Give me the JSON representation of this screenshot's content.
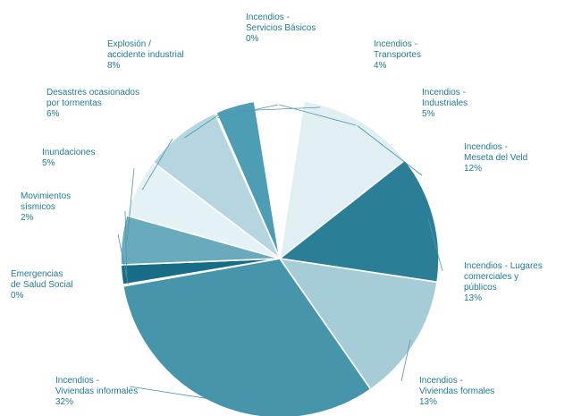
{
  "chart_data": {
    "type": "pie",
    "title": "",
    "start_category": "Incendios - Servicios Básicos",
    "direction": "clockwise",
    "slices": [
      {
        "category": "Incendios - Servicios Básicos",
        "label_lines": [
          "Incendios -",
          "Servicios Básicos",
          "0%"
        ],
        "value": 0,
        "color": "#2e8aa3"
      },
      {
        "category": "Incendios - Transportes",
        "label_lines": [
          "Incendios -",
          "Transportes",
          "4%"
        ],
        "value": 4,
        "color": "#4d9db4"
      },
      {
        "category": "Incendios - Industriales",
        "label_lines": [
          "Incendios -",
          "Industriales",
          "5%"
        ],
        "value": 5,
        "color": "#ffffff"
      },
      {
        "category": "Incendios - Meseta del Veld",
        "label_lines": [
          "Incendios -",
          "Meseta del Veld",
          "12%"
        ],
        "value": 12,
        "color": "#e1eff3"
      },
      {
        "category": "Incendios - Lugares comerciales y públicos",
        "label_lines": [
          "Incendios - Lugares",
          "comerciales y",
          "públicos",
          "13%"
        ],
        "value": 13,
        "color": "#2a7f97"
      },
      {
        "category": "Incendios - Viviendas formales",
        "label_lines": [
          "Incendios -",
          "Viviendas formales",
          "13%"
        ],
        "value": 13,
        "color": "#a6ccd8"
      },
      {
        "category": "Incendios - Viviendas informales",
        "label_lines": [
          "Incendios -",
          "Viviendas informales",
          "32%"
        ],
        "value": 32,
        "color": "#4795ab"
      },
      {
        "category": "Emergencias de Salud Social",
        "label_lines": [
          "Emergencias",
          "de Salud Social",
          "0%"
        ],
        "value": 0,
        "color": "#3a8ea6"
      },
      {
        "category": "Movimientos sísmicos",
        "label_lines": [
          "Movimientos",
          "sísmicos",
          "2%"
        ],
        "value": 2,
        "color": "#176d85"
      },
      {
        "category": "Inundaciones",
        "label_lines": [
          "Inundaciones",
          "5%"
        ],
        "value": 5,
        "color": "#6aaabd"
      },
      {
        "category": "Desastres ocasionados por tormentas",
        "label_lines": [
          "Desastres ocasionados",
          "por tormentas",
          "6%"
        ],
        "value": 6,
        "color": "#e4f1f5"
      },
      {
        "category": "Explosión / accidente industrial",
        "label_lines": [
          "Explosión /",
          "accidente industrial",
          "8%"
        ],
        "value": 8,
        "color": "#b5d6e0"
      }
    ]
  }
}
